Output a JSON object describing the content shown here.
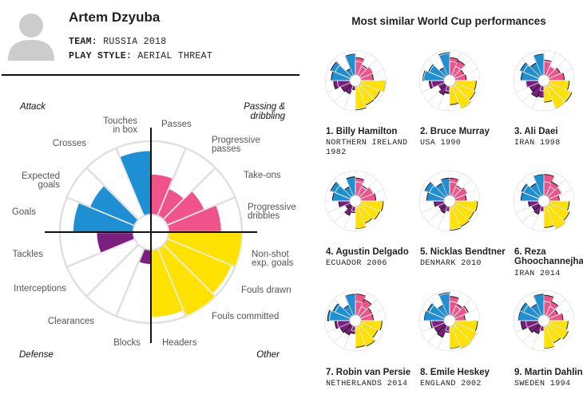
{
  "player": {
    "name": "Artem Dzyuba",
    "team_key": "TEAM:",
    "team_value": "RUSSIA 2018",
    "style_key": "PLAY STYLE:",
    "style_value": "AERIAL THREAT"
  },
  "similar_title": "Most similar World Cup performances",
  "colors": {
    "attack": "#1e8fd2",
    "passing": "#f0528a",
    "other": "#ffe200",
    "defense": "#7b1e7e",
    "grid": "#e0e0e0",
    "axis": "#111111"
  },
  "chart_data": [
    {
      "type": "polar-bar",
      "title": "Artem Dzyuba",
      "scale": [
        0,
        100
      ],
      "quadrants": [
        "Attack",
        "Passing & dribbling",
        "Other",
        "Defense"
      ],
      "categories": [
        "Passes",
        "Progressive passes",
        "Take-ons",
        "Progressive dribbles",
        "Non-shot exp. goals",
        "Fouls drawn",
        "Fouls committed",
        "Headers",
        "Blocks",
        "Clearances",
        "Interceptions",
        "Tackles",
        "Goals",
        "Expected goals",
        "Crosses",
        "Touches in box"
      ],
      "category_labels": [
        [
          "Passes"
        ],
        [
          "Progressive",
          "passes"
        ],
        [
          "Take-ons"
        ],
        [
          "Progressive",
          "dribbles"
        ],
        [
          "Non-shot",
          "exp. goals"
        ],
        [
          "Fouls drawn"
        ],
        [
          "Fouls committed"
        ],
        [
          "Headers"
        ],
        [
          "Blocks"
        ],
        [
          "Clearances"
        ],
        [
          "Interceptions"
        ],
        [
          "Tackles"
        ],
        [
          "Goals"
        ],
        [
          "Expected",
          "goals"
        ],
        [
          "Crosses"
        ],
        [
          "Touches",
          "in box"
        ]
      ],
      "values": [
        55,
        40,
        55,
        72,
        100,
        95,
        100,
        92,
        20,
        0,
        0,
        50,
        82,
        66,
        0,
        87
      ]
    },
    {
      "type": "polar-bar",
      "rank": "1.",
      "name": "Billy Hamilton",
      "sub": [
        "NORTHERN IRELAND",
        "1982"
      ],
      "values": [
        70,
        45,
        55,
        50,
        100,
        85,
        85,
        95,
        15,
        35,
        40,
        65,
        75,
        85,
        30,
        85
      ]
    },
    {
      "type": "polar-bar",
      "rank": "2.",
      "name": "Bruce Murray",
      "sub": [
        "USA 1990"
      ],
      "values": [
        70,
        65,
        40,
        45,
        85,
        90,
        100,
        75,
        30,
        40,
        25,
        60,
        85,
        70,
        35,
        90
      ]
    },
    {
      "type": "polar-bar",
      "rank": "3.",
      "name": "Ali Daei",
      "sub": [
        "IRAN 1998"
      ],
      "values": [
        60,
        40,
        50,
        60,
        80,
        100,
        100,
        65,
        45,
        50,
        40,
        50,
        70,
        80,
        55,
        85
      ]
    },
    {
      "type": "polar-bar",
      "rank": "4.",
      "name": "Agustin Delgado",
      "sub": [
        "ECUADOR 2006"
      ],
      "values": [
        70,
        45,
        55,
        60,
        90,
        85,
        75,
        90,
        25,
        40,
        20,
        45,
        70,
        85,
        40,
        75
      ]
    },
    {
      "type": "polar-bar",
      "rank": "5.",
      "name": "Nicklas Bendtner",
      "sub": [
        "DENMARK 2010"
      ],
      "values": [
        70,
        45,
        55,
        45,
        90,
        85,
        90,
        95,
        20,
        30,
        25,
        40,
        70,
        85,
        55,
        70
      ]
    },
    {
      "type": "polar-bar",
      "rank": "6.",
      "name": [
        "Reza",
        "Ghoochannejhad"
      ],
      "sub": [
        "IRAN 2014"
      ],
      "values": [
        85,
        60,
        55,
        40,
        80,
        90,
        100,
        85,
        20,
        35,
        30,
        40,
        70,
        75,
        55,
        85
      ]
    },
    {
      "type": "polar-bar",
      "rank": "7.",
      "name": "Robin van Persie",
      "sub": [
        "NETHERLANDS 2014"
      ],
      "values": [
        85,
        70,
        50,
        50,
        85,
        75,
        90,
        85,
        30,
        40,
        45,
        60,
        90,
        75,
        45,
        85
      ]
    },
    {
      "type": "polar-bar",
      "rank": "8.",
      "name": "Emile Heskey",
      "sub": [
        "ENGLAND 2002"
      ],
      "values": [
        75,
        50,
        60,
        40,
        90,
        95,
        100,
        90,
        25,
        50,
        45,
        55,
        80,
        75,
        45,
        90
      ]
    },
    {
      "type": "polar-bar",
      "rank": "9.",
      "name": "Martin Dahlin",
      "sub": [
        "SWEDEN 1994"
      ],
      "values": [
        80,
        60,
        40,
        55,
        75,
        85,
        75,
        90,
        20,
        35,
        45,
        70,
        80,
        80,
        50,
        85
      ]
    }
  ]
}
